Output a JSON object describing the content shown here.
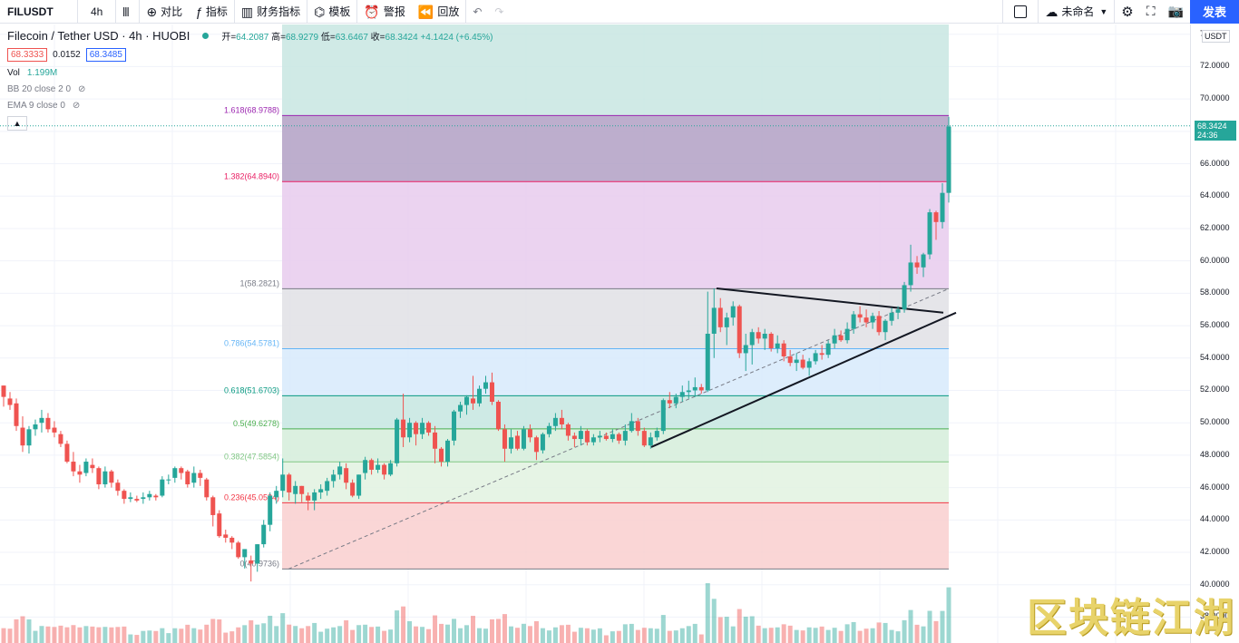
{
  "toolbar": {
    "symbol": "FILUSDT",
    "interval": "4h",
    "items": [
      {
        "icon": "plus-circle-icon",
        "label": "对比"
      },
      {
        "icon": "function-icon",
        "label": "指标"
      },
      {
        "icon": "bar-chart-icon",
        "label": "财务指标"
      },
      {
        "icon": "template-icon",
        "label": "模板"
      },
      {
        "icon": "alarm-icon",
        "label": "警报"
      },
      {
        "icon": "replay-icon",
        "label": "回放"
      }
    ],
    "layout_name": "未命名",
    "publish": "发表"
  },
  "legend": {
    "title": "Filecoin / Tether USD · 4h · HUOBI",
    "open_label": "开",
    "open": "64.2087",
    "high_label": "高",
    "high": "68.9279",
    "low_label": "低",
    "low": "63.6467",
    "close_label": "收",
    "close": "68.3424",
    "change": "+4.1424 (+6.45%)",
    "bid": "68.3333",
    "spread": "0.0152",
    "ask": "68.3485",
    "vol_label": "Vol",
    "vol_value": "1.199M",
    "bb": "BB 20 close 2 0",
    "ema": "EMA 9 close 0"
  },
  "price_axis": {
    "currency": "USDT",
    "current_price": "68.3424",
    "countdown": "24:36",
    "ticks": [
      "74.0000",
      "72.0000",
      "70.0000",
      "68.0000",
      "66.0000",
      "64.0000",
      "62.0000",
      "60.0000",
      "58.0000",
      "56.0000",
      "54.0000",
      "52.0000",
      "50.0000",
      "48.0000",
      "46.0000",
      "44.0000",
      "42.0000",
      "40.0000",
      "38.0000"
    ]
  },
  "fib_levels": [
    {
      "label": "1.618(68.9788)",
      "price": 68.9788,
      "color": "#9c27b0"
    },
    {
      "label": "1.382(64.8940)",
      "price": 64.894,
      "color": "#e91e63"
    },
    {
      "label": "1(58.2821)",
      "price": 58.2821,
      "color": "#787b86"
    },
    {
      "label": "0.786(54.5781)",
      "price": 54.5781,
      "color": "#64b5f6"
    },
    {
      "label": "0.618(51.6703)",
      "price": 51.6703,
      "color": "#089981"
    },
    {
      "label": "0.5(49.6278)",
      "price": 49.6278,
      "color": "#4caf50"
    },
    {
      "label": "0.382(47.5854)",
      "price": 47.5854,
      "color": "#81c784"
    },
    {
      "label": "0.236(45.0584)",
      "price": 45.0584,
      "color": "#f23645"
    },
    {
      "label": "0(40.9736)",
      "price": 40.9736,
      "color": "#787b86"
    }
  ],
  "watermark": "区块链江湖",
  "chart_data": {
    "type": "candlestick",
    "y_range": [
      36.4,
      74.6
    ],
    "candles": [
      [
        52.3,
        52.3,
        51.0,
        51.6
      ],
      [
        51.5,
        51.9,
        50.8,
        51.1
      ],
      [
        51.2,
        51.5,
        49.5,
        49.8
      ],
      [
        49.7,
        50.4,
        48.2,
        48.6
      ],
      [
        48.6,
        49.8,
        48.1,
        49.6
      ],
      [
        49.6,
        50.2,
        49.2,
        49.9
      ],
      [
        50.0,
        50.8,
        49.4,
        50.3
      ],
      [
        50.3,
        50.6,
        49.4,
        49.6
      ],
      [
        49.7,
        50.1,
        49.1,
        49.4
      ],
      [
        49.3,
        49.5,
        48.5,
        48.7
      ],
      [
        48.7,
        48.9,
        47.5,
        47.6
      ],
      [
        47.6,
        48.2,
        46.7,
        47.0
      ],
      [
        47.0,
        47.4,
        46.3,
        46.8
      ],
      [
        46.9,
        47.8,
        46.7,
        47.6
      ],
      [
        47.4,
        47.8,
        46.9,
        47.2
      ],
      [
        47.2,
        47.3,
        45.9,
        46.2
      ],
      [
        46.2,
        47.3,
        46.0,
        47.0
      ],
      [
        47.0,
        47.1,
        46.0,
        46.3
      ],
      [
        46.3,
        46.5,
        45.5,
        45.8
      ],
      [
        45.8,
        45.9,
        45.0,
        45.3
      ],
      [
        45.3,
        45.7,
        45.1,
        45.4
      ],
      [
        45.3,
        45.5,
        45.1,
        45.2
      ],
      [
        45.3,
        45.7,
        45.0,
        45.4
      ],
      [
        45.4,
        45.8,
        45.2,
        45.6
      ],
      [
        45.5,
        45.6,
        45.2,
        45.4
      ],
      [
        45.5,
        46.7,
        45.4,
        46.5
      ],
      [
        46.5,
        46.8,
        46.2,
        46.5
      ],
      [
        46.6,
        47.3,
        46.3,
        47.2
      ],
      [
        47.2,
        47.3,
        46.5,
        46.9
      ],
      [
        47.0,
        47.1,
        46.0,
        46.2
      ],
      [
        46.3,
        47.3,
        46.0,
        46.9
      ],
      [
        46.9,
        47.1,
        46.1,
        46.6
      ],
      [
        46.5,
        46.6,
        45.2,
        45.4
      ],
      [
        45.4,
        45.5,
        43.6,
        44.3
      ],
      [
        44.4,
        44.6,
        42.9,
        43.0
      ],
      [
        43.1,
        43.4,
        42.6,
        42.9
      ],
      [
        42.9,
        43.0,
        42.2,
        42.6
      ],
      [
        42.6,
        42.7,
        41.6,
        41.7
      ],
      [
        41.7,
        42.2,
        41.0,
        42.2
      ],
      [
        41.5,
        41.8,
        40.2,
        41.3
      ],
      [
        41.3,
        42.5,
        40.8,
        42.5
      ],
      [
        42.5,
        44.0,
        42.3,
        43.7
      ],
      [
        43.7,
        45.7,
        43.3,
        45.5
      ],
      [
        45.4,
        46.1,
        45.0,
        45.8
      ],
      [
        45.8,
        47.8,
        45.4,
        46.8
      ],
      [
        46.8,
        46.9,
        45.2,
        45.7
      ],
      [
        45.6,
        46.4,
        45.0,
        46.1
      ],
      [
        46.1,
        46.1,
        45.1,
        45.6
      ],
      [
        45.5,
        45.7,
        44.6,
        45.2
      ],
      [
        45.2,
        45.9,
        44.6,
        45.7
      ],
      [
        45.7,
        46.2,
        45.3,
        45.9
      ],
      [
        45.8,
        46.6,
        45.5,
        46.4
      ],
      [
        46.4,
        47.1,
        46.0,
        46.8
      ],
      [
        46.8,
        47.6,
        46.5,
        47.3
      ],
      [
        47.2,
        47.5,
        45.9,
        46.3
      ],
      [
        46.3,
        46.5,
        45.4,
        45.5
      ],
      [
        45.5,
        46.8,
        45.3,
        46.8
      ],
      [
        46.9,
        47.9,
        46.5,
        47.7
      ],
      [
        47.7,
        47.8,
        46.8,
        47.1
      ],
      [
        47.1,
        47.8,
        46.9,
        47.4
      ],
      [
        47.4,
        47.5,
        46.5,
        46.8
      ],
      [
        46.8,
        47.7,
        46.7,
        47.5
      ],
      [
        47.5,
        50.3,
        47.3,
        50.2
      ],
      [
        50.2,
        51.8,
        48.5,
        49.1
      ],
      [
        49.1,
        50.3,
        48.8,
        50.0
      ],
      [
        50.0,
        50.1,
        48.6,
        49.3
      ],
      [
        49.3,
        50.3,
        49.0,
        50.0
      ],
      [
        50.0,
        50.1,
        49.2,
        49.4
      ],
      [
        49.4,
        49.8,
        47.5,
        48.4
      ],
      [
        48.4,
        48.5,
        47.3,
        47.6
      ],
      [
        47.6,
        49.0,
        47.3,
        48.9
      ],
      [
        48.9,
        50.8,
        48.6,
        50.7
      ],
      [
        50.7,
        51.3,
        50.3,
        51.1
      ],
      [
        51.1,
        51.7,
        50.5,
        51.6
      ],
      [
        51.5,
        52.9,
        50.8,
        51.2
      ],
      [
        51.2,
        52.3,
        51.0,
        52.1
      ],
      [
        52.1,
        52.9,
        51.8,
        52.5
      ],
      [
        52.5,
        53.1,
        51.1,
        51.3
      ],
      [
        51.3,
        51.4,
        49.5,
        49.6
      ],
      [
        49.6,
        49.9,
        47.6,
        48.4
      ],
      [
        48.4,
        49.6,
        48.1,
        49.1
      ],
      [
        49.2,
        49.5,
        48.3,
        48.4
      ],
      [
        48.4,
        49.8,
        48.3,
        49.6
      ],
      [
        49.6,
        49.9,
        48.8,
        49.1
      ],
      [
        49.1,
        49.2,
        47.7,
        48.2
      ],
      [
        48.3,
        49.4,
        48.1,
        49.3
      ],
      [
        49.3,
        50.0,
        49.1,
        49.8
      ],
      [
        49.8,
        50.6,
        49.5,
        50.3
      ],
      [
        50.3,
        50.8,
        49.6,
        49.9
      ],
      [
        49.9,
        50.0,
        48.9,
        49.2
      ],
      [
        49.2,
        49.4,
        48.5,
        49.0
      ],
      [
        49.0,
        49.8,
        48.6,
        49.5
      ],
      [
        49.5,
        49.6,
        48.6,
        48.8
      ],
      [
        48.8,
        49.3,
        48.6,
        49.1
      ],
      [
        49.1,
        49.5,
        48.8,
        49.2
      ],
      [
        49.2,
        49.4,
        48.9,
        49.0
      ],
      [
        49.0,
        49.6,
        48.8,
        49.3
      ],
      [
        49.3,
        49.4,
        48.7,
        48.9
      ],
      [
        48.9,
        49.9,
        48.6,
        49.5
      ],
      [
        49.5,
        50.6,
        49.4,
        50.1
      ],
      [
        50.1,
        50.3,
        49.2,
        49.5
      ],
      [
        49.5,
        49.7,
        48.5,
        48.6
      ],
      [
        48.6,
        49.4,
        48.4,
        49.1
      ],
      [
        49.1,
        49.7,
        48.9,
        49.5
      ],
      [
        49.5,
        51.5,
        49.3,
        51.4
      ],
      [
        51.4,
        51.9,
        50.9,
        51.2
      ],
      [
        51.2,
        51.8,
        50.9,
        51.6
      ],
      [
        51.6,
        52.3,
        51.3,
        51.9
      ],
      [
        51.9,
        52.6,
        51.5,
        52.0
      ],
      [
        52.0,
        52.8,
        51.6,
        52.2
      ],
      [
        52.2,
        52.4,
        51.8,
        52.0
      ],
      [
        52.0,
        58.1,
        51.9,
        55.5
      ],
      [
        55.5,
        58.3,
        54.0,
        57.1
      ],
      [
        57.1,
        57.7,
        55.6,
        55.9
      ],
      [
        55.9,
        56.8,
        54.8,
        56.5
      ],
      [
        56.5,
        57.5,
        56.0,
        57.2
      ],
      [
        57.2,
        57.3,
        54.0,
        54.3
      ],
      [
        54.3,
        55.5,
        53.2,
        54.8
      ],
      [
        54.8,
        55.8,
        53.6,
        55.6
      ],
      [
        55.6,
        55.9,
        54.9,
        55.2
      ],
      [
        55.2,
        55.8,
        54.5,
        55.5
      ],
      [
        55.5,
        55.6,
        54.4,
        54.6
      ],
      [
        54.6,
        55.4,
        54.3,
        54.9
      ],
      [
        54.9,
        55.1,
        53.8,
        54.1
      ],
      [
        54.1,
        54.5,
        53.5,
        53.7
      ],
      [
        53.7,
        54.3,
        53.2,
        53.9
      ],
      [
        53.9,
        54.2,
        53.3,
        53.4
      ],
      [
        53.4,
        54.0,
        52.9,
        53.8
      ],
      [
        53.8,
        54.5,
        53.6,
        54.3
      ],
      [
        54.3,
        54.8,
        53.9,
        54.2
      ],
      [
        54.2,
        55.1,
        54.0,
        54.9
      ],
      [
        54.9,
        55.8,
        54.6,
        55.4
      ],
      [
        55.4,
        55.7,
        55.0,
        55.1
      ],
      [
        55.1,
        56.2,
        54.9,
        55.8
      ],
      [
        55.8,
        56.9,
        55.5,
        56.7
      ],
      [
        56.7,
        57.2,
        56.2,
        56.5
      ],
      [
        56.5,
        57.0,
        55.9,
        56.2
      ],
      [
        56.2,
        56.8,
        55.8,
        56.6
      ],
      [
        56.6,
        56.9,
        55.4,
        55.6
      ],
      [
        55.6,
        56.4,
        55.1,
        56.3
      ],
      [
        56.3,
        57.1,
        56.0,
        56.8
      ],
      [
        56.8,
        57.2,
        56.4,
        57.0
      ],
      [
        57.0,
        58.7,
        56.8,
        58.5
      ],
      [
        58.5,
        61.0,
        58.1,
        59.9
      ],
      [
        59.9,
        60.3,
        59.2,
        59.6
      ],
      [
        59.6,
        60.5,
        59.0,
        60.4
      ],
      [
        60.4,
        63.2,
        60.1,
        63.0
      ],
      [
        63.0,
        63.1,
        61.3,
        62.4
      ],
      [
        62.4,
        64.8,
        62.0,
        64.2
      ],
      [
        64.2,
        68.9,
        63.6,
        68.3
      ]
    ],
    "volume_max": 44.5
  }
}
